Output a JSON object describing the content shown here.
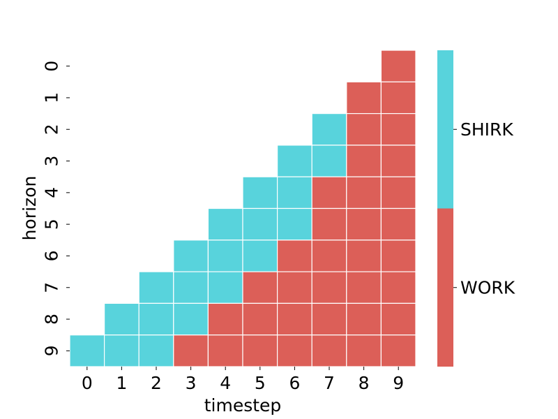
{
  "chart_data": {
    "type": "heatmap",
    "xlabel": "timestep",
    "ylabel": "horizon",
    "x_ticks": [
      "0",
      "1",
      "2",
      "3",
      "4",
      "5",
      "6",
      "7",
      "8",
      "9"
    ],
    "y_ticks": [
      "0",
      "1",
      "2",
      "3",
      "4",
      "5",
      "6",
      "7",
      "8",
      "9"
    ],
    "categories": [
      "SHIRK",
      "WORK"
    ],
    "colors": {
      "SHIRK": "#58d3dc",
      "WORK": "#dc5f58"
    },
    "colorbar_labels": [
      "SHIRK",
      "WORK"
    ],
    "grid": "white cell borders",
    "cells": [
      [
        null,
        null,
        null,
        null,
        null,
        null,
        null,
        null,
        null,
        "WORK"
      ],
      [
        null,
        null,
        null,
        null,
        null,
        null,
        null,
        null,
        "WORK",
        "WORK"
      ],
      [
        null,
        null,
        null,
        null,
        null,
        null,
        null,
        "SHIRK",
        "WORK",
        "WORK"
      ],
      [
        null,
        null,
        null,
        null,
        null,
        null,
        "SHIRK",
        "SHIRK",
        "WORK",
        "WORK"
      ],
      [
        null,
        null,
        null,
        null,
        null,
        "SHIRK",
        "SHIRK",
        "WORK",
        "WORK",
        "WORK"
      ],
      [
        null,
        null,
        null,
        null,
        "SHIRK",
        "SHIRK",
        "SHIRK",
        "WORK",
        "WORK",
        "WORK"
      ],
      [
        null,
        null,
        null,
        "SHIRK",
        "SHIRK",
        "SHIRK",
        "WORK",
        "WORK",
        "WORK",
        "WORK"
      ],
      [
        null,
        null,
        "SHIRK",
        "SHIRK",
        "SHIRK",
        "WORK",
        "WORK",
        "WORK",
        "WORK",
        "WORK"
      ],
      [
        null,
        "SHIRK",
        "SHIRK",
        "SHIRK",
        "WORK",
        "WORK",
        "WORK",
        "WORK",
        "WORK",
        "WORK"
      ],
      [
        "SHIRK",
        "SHIRK",
        "SHIRK",
        "WORK",
        "WORK",
        "WORK",
        "WORK",
        "WORK",
        "WORK",
        "WORK"
      ]
    ]
  }
}
